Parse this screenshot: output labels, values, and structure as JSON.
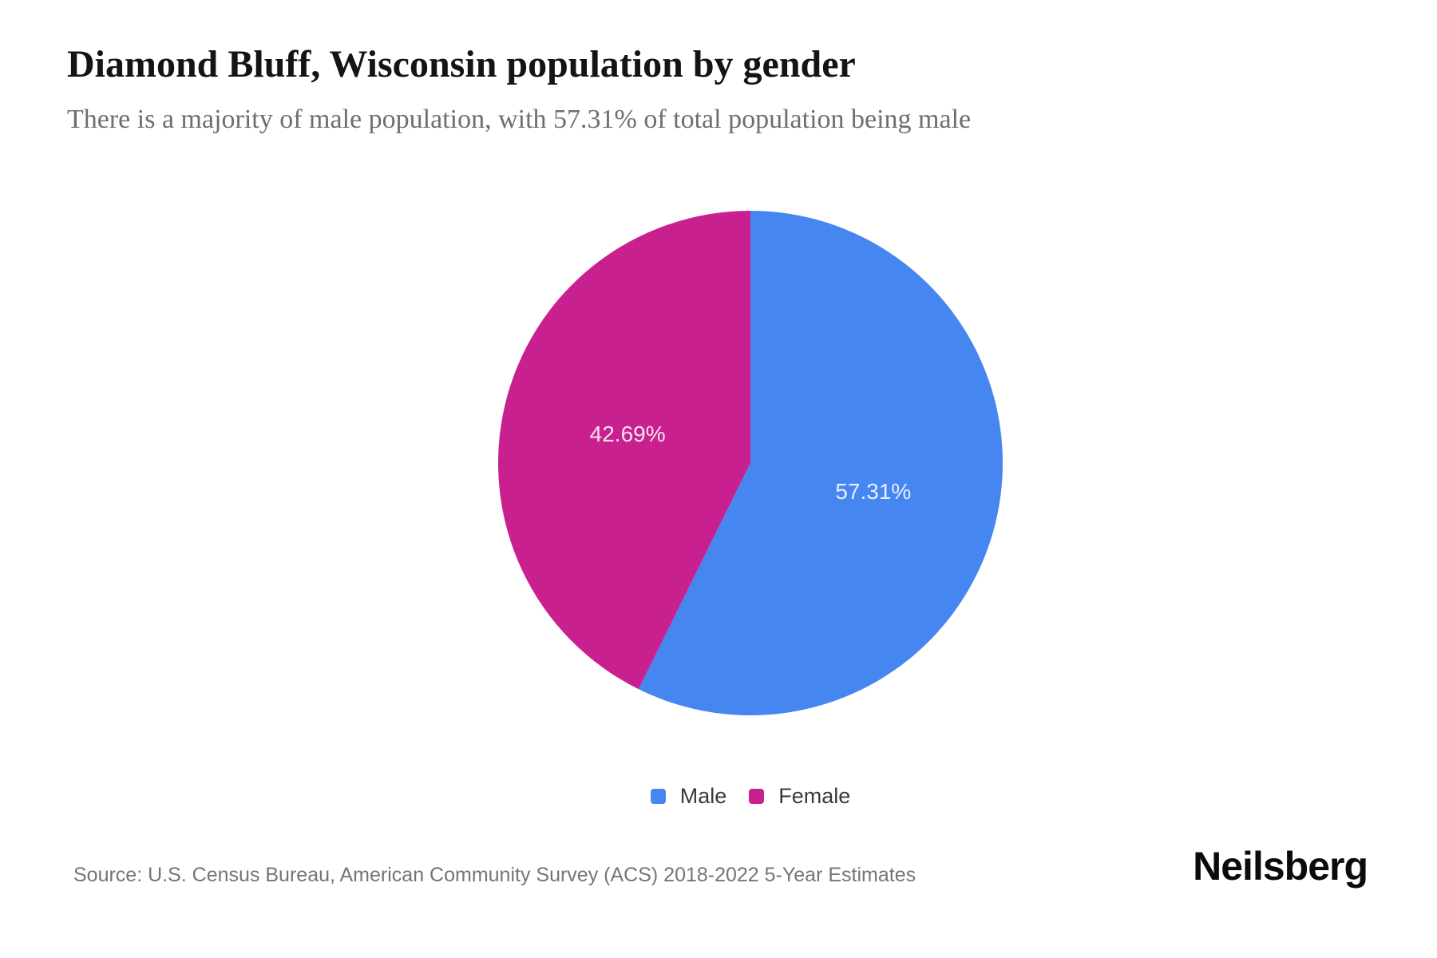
{
  "header": {
    "title": "Diamond Bluff, Wisconsin population by gender",
    "subtitle": "There is a majority of male population, with 57.31% of total population being male"
  },
  "chart_data": {
    "type": "pie",
    "title": "Diamond Bluff, Wisconsin population by gender",
    "subtitle": "There is a majority of male population, with 57.31% of total population being male",
    "start_angle_deg": 0,
    "direction": "clockwise",
    "legend_position": "bottom",
    "series": [
      {
        "name": "Male",
        "value": 57.31,
        "label": "57.31%",
        "color": "#4686F0"
      },
      {
        "name": "Female",
        "value": 42.69,
        "label": "42.69%",
        "color": "#C8218F"
      }
    ]
  },
  "footer": {
    "source": "Source: U.S. Census Bureau, American Community Survey (ACS) 2018-2022 5-Year Estimates",
    "logo": "Neilsberg"
  }
}
